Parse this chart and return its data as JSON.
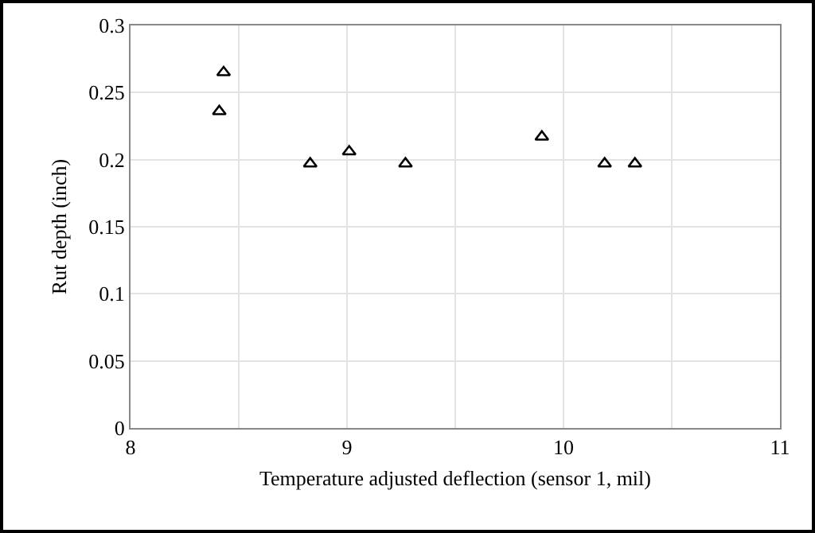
{
  "chart_data": {
    "type": "scatter",
    "xlabel": "Temperature adjusted deflection (sensor 1, mil)",
    "ylabel": "Rut depth (inch)",
    "x": [
      8.41,
      8.43,
      8.83,
      9.01,
      9.27,
      9.9,
      10.19,
      10.33
    ],
    "series": [
      {
        "color": "#000000",
        "values": [
          0.236,
          0.265,
          0.197,
          0.206,
          0.197,
          0.217,
          0.197,
          0.197
        ]
      }
    ],
    "xlim": [
      8,
      11
    ],
    "xticks": [
      8,
      {
        "value": 8.5,
        "label": null
      },
      9,
      {
        "value": 9.5,
        "label": null
      },
      10,
      {
        "value": 10.5,
        "label": null
      },
      11
    ],
    "ylim": [
      0,
      0.3
    ],
    "yticks": [
      0,
      0.05,
      0.1,
      0.15,
      0.2,
      0.25,
      0.3
    ],
    "grid": true,
    "marker": "triangle"
  }
}
